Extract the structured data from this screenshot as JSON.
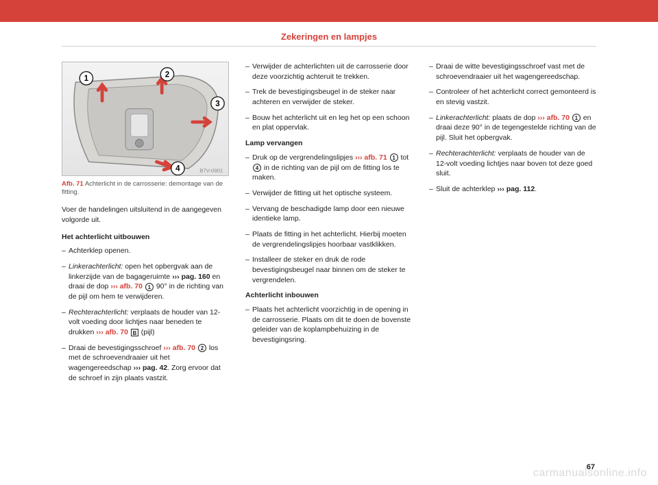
{
  "header": {
    "title": "Zekeringen en lampjes"
  },
  "figure": {
    "label": "Afb. 71",
    "caption_rest": "Achterlicht in de carrosserie: demontage van de fitting.",
    "code": "B7V-0901",
    "callouts": [
      "1",
      "2",
      "3",
      "4"
    ]
  },
  "col1": {
    "intro": "Voer de handelingen uitsluitend in de aangegeven volgorde uit.",
    "subhead": "Het achterlicht uitbouwen",
    "items": [
      {
        "text": "Achterklep openen."
      },
      {
        "html": "<span class=\"italic\">Linkerachterlicht:</span> open het opbergvak aan de linkerzijde van de bagageruimte <span class=\"bold\">››› pag. 160</span> en draai de dop <span class=\"ref\">››› afb. 70</span> <span class=\"badge\">1</span> 90° in de richting van de pijl om hem te verwijderen."
      },
      {
        "html": "<span class=\"italic\">Rechterachterlicht:</span> verplaats de houder van 12-volt voeding door lichtjes naar beneden te drukken <span class=\"ref\">››› afb. 70</span> <span class=\"sqbadge\">B</span> (pijl)"
      },
      {
        "html": "Draai de bevestigingsschroef <span class=\"ref\">››› afb. 70</span> <span class=\"badge\">2</span> los met de schroevendraaier uit het wagengereedschap <span class=\"bold\">››› pag. 42</span>. Zorg ervoor dat de schroef in zijn plaats vastzit."
      }
    ]
  },
  "col2": {
    "top_items": [
      {
        "text": "Verwijder de achterlichten uit de carrosserie door deze voorzichtig achteruit te trekken."
      },
      {
        "text": "Trek de bevestigingsbeugel in de steker naar achteren en verwijder de steker."
      },
      {
        "text": "Bouw het achterlicht uit en leg het op een schoon en plat oppervlak."
      }
    ],
    "subhead1": "Lamp vervangen",
    "mid_items": [
      {
        "html": "Druk op de vergrendelingslipjes <span class=\"ref\">››› afb. 71</span> <span class=\"badge\">1</span> tot <span class=\"badge\">4</span> in de richting van de pijl om de fitting los te maken."
      },
      {
        "text": "Verwijder de fitting uit het optische systeem."
      },
      {
        "text": "Vervang de beschadigde lamp door een nieuwe identieke lamp."
      },
      {
        "text": "Plaats de fitting in het achterlicht. Hierbij moeten de vergrendelingslipjes hoorbaar vastklikken."
      },
      {
        "text": "Installeer de steker en druk de rode bevestigingsbeugel naar binnen om de steker te vergrendelen."
      }
    ],
    "subhead2": "Achterlicht inbouwen",
    "bottom_items": [
      {
        "text": "Plaats het achterlicht voorzichtig in de opening in de carrosserie. Plaats om dit te doen de bovenste geleider van de koplampbehuizing in de bevestigingsring."
      }
    ]
  },
  "col3": {
    "items": [
      {
        "text": "Draai de witte bevestigingsschroef vast met de schroevendraaier uit het wagengereedschap."
      },
      {
        "text": "Controleer of het achterlicht correct gemonteerd is en stevig vastzit."
      },
      {
        "html": "<span class=\"italic\">Linkerachterlicht:</span> plaats de dop <span class=\"ref\">››› afb. 70</span> <span class=\"badge\">1</span> en draai deze 90° in de tegengestelde richting van de pijl. Sluit het opbergvak."
      },
      {
        "html": "<span class=\"italic\">Rechterachterlicht:</span> verplaats de houder van de 12-volt voeding lichtjes naar boven tot deze goed sluit."
      },
      {
        "html": "Sluit de achterklep <span class=\"bold\">››› pag. 112</span>."
      }
    ]
  },
  "pagenum": "67",
  "watermark": "carmanualsonline.info",
  "colors": {
    "accent": "#d4423a",
    "text": "#222222",
    "rule": "#cfcfcf",
    "watermark": "#d9d9d9"
  }
}
